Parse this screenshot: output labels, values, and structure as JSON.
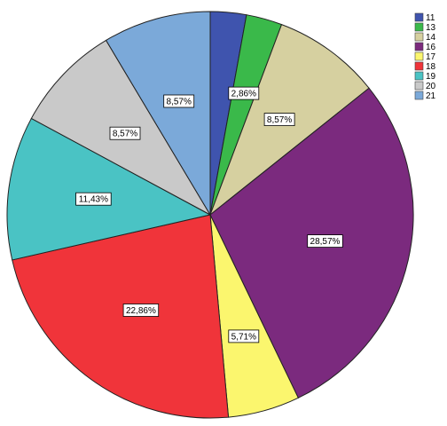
{
  "chart_data": {
    "type": "pie",
    "categories": [
      "11",
      "13",
      "14",
      "16",
      "17",
      "18",
      "19",
      "20",
      "21"
    ],
    "values": [
      2.86,
      2.86,
      8.57,
      28.57,
      5.71,
      22.86,
      11.43,
      8.57,
      8.57
    ],
    "data_labels": [
      "",
      "2,86%",
      "8,57%",
      "28,57%",
      "5,71%",
      "22,86%",
      "11,43%",
      "8,57%",
      "8,57%"
    ],
    "colors": [
      "#3F54AE",
      "#3AB94A",
      "#D6D0A0",
      "#7B2A7E",
      "#FBF66E",
      "#F0343A",
      "#4AC3C4",
      "#C9C9C9",
      "#7BA9D9"
    ],
    "start": "12 o'clock",
    "direction": "clockwise",
    "legend_position": "top-right"
  }
}
